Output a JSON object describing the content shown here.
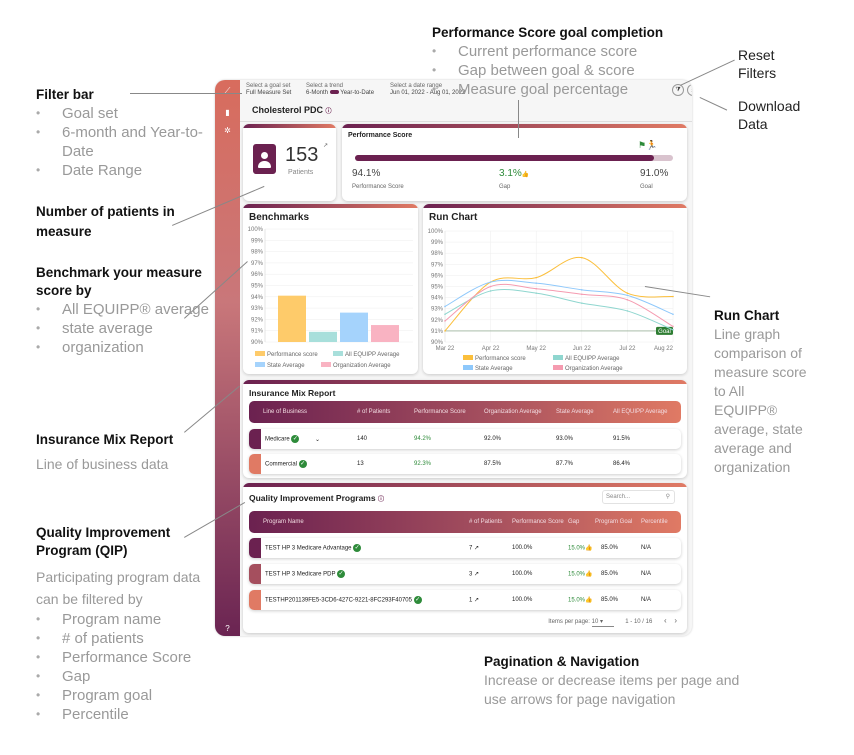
{
  "annotations": {
    "filter_bar": {
      "title": "Filter bar",
      "items": [
        "Goal set",
        "6-month and Year-to-Date",
        "Date Range"
      ]
    },
    "patients": {
      "title": "Number of patients in measure"
    },
    "benchmark": {
      "title": "Benchmark your measure score by",
      "items": [
        "All EQUIPP® average",
        "state average",
        "organization"
      ]
    },
    "insurance": {
      "title": "Insurance Mix Report",
      "desc": "Line of business data"
    },
    "qip": {
      "title": "Quality Improvement Program (QIP)",
      "desc": "Participating program data can be filtered by",
      "items": [
        "Program name",
        "# of patients",
        "Performance Score",
        "Gap",
        "Program goal",
        "Percentile"
      ]
    },
    "perf_goal": {
      "title": "Performance Score goal completion",
      "items": [
        "Current performance score",
        "Gap between goal & score",
        "Measure goal percentage"
      ]
    },
    "reset": {
      "title": "Reset Filters"
    },
    "download": {
      "title": "Download Data"
    },
    "run_chart": {
      "title": "Run Chart",
      "desc": "Line graph comparison of measure score to All EQUIPP® average, state average and organization"
    },
    "pagination": {
      "title": "Pagination & Navigation",
      "desc": "Increase or decrease items per page and use arrows for page navigation"
    }
  },
  "filters": {
    "goal_label": "Select a goal set",
    "goal_value": "Full Measure Set",
    "trend_label": "Select a trend",
    "trend_left": "6-Month",
    "trend_right": "Year-to-Date",
    "date_label": "Select a date range",
    "date_value": "Jun 01, 2022 - Aug 01, 2022"
  },
  "page_title": "Cholesterol PDC",
  "patients": {
    "count": "153",
    "label": "Patients"
  },
  "performance": {
    "title": "Performance Score",
    "score": "94.1%",
    "score_label": "Performance Score",
    "gap": "3.1%",
    "gap_label": "Gap",
    "goal": "91.0%",
    "goal_label": "Goal",
    "progress": 94.1
  },
  "colors": {
    "primary": "#6b2150",
    "accent": "#e07a64",
    "positive": "#2e8b3a"
  },
  "benchmarks": {
    "title": "Benchmarks"
  },
  "run_chart": {
    "title": "Run Chart"
  },
  "chart_data": [
    {
      "type": "bar",
      "title": "Benchmarks",
      "ylim": [
        90,
        100
      ],
      "yticks": [
        "90%",
        "91%",
        "92%",
        "93%",
        "94%",
        "95%",
        "96%",
        "97%",
        "98%",
        "99%",
        "100%"
      ],
      "series": [
        {
          "name": "Performance score",
          "value": 94.1,
          "color": "#fecb6a"
        },
        {
          "name": "All EQUIPP Average",
          "value": 90.9,
          "color": "#a8dfdb"
        },
        {
          "name": "State Average",
          "value": 92.6,
          "color": "#a5d3fc"
        },
        {
          "name": "Organization Average",
          "value": 91.5,
          "color": "#f9b3c2"
        }
      ]
    },
    {
      "type": "line",
      "title": "Run Chart",
      "ylim": [
        90,
        100
      ],
      "yticks": [
        "90%",
        "91%",
        "92%",
        "93%",
        "94%",
        "95%",
        "96%",
        "97%",
        "98%",
        "99%",
        "100%"
      ],
      "x": [
        "Mar 22",
        "Apr 22",
        "May 22",
        "Jun 22",
        "Jul 22",
        "Aug 22"
      ],
      "goal": 91,
      "goal_label": "Goal",
      "series": [
        {
          "name": "Performance score",
          "color": "#fbbf3c",
          "values": [
            91.0,
            95.4,
            95.8,
            97.6,
            94.4,
            94.1
          ]
        },
        {
          "name": "All EQUIPP Average",
          "color": "#8fd6cf",
          "values": [
            92.5,
            94.6,
            94.4,
            93.5,
            92.8,
            91.1
          ]
        },
        {
          "name": "State Average",
          "color": "#8ec8fb",
          "values": [
            93.2,
            95.4,
            95.3,
            94.7,
            94.2,
            92.5
          ]
        },
        {
          "name": "Organization Average",
          "color": "#f59bb0",
          "values": [
            91.9,
            95.0,
            94.8,
            94.3,
            93.8,
            91.4
          ]
        }
      ]
    }
  ],
  "insurance": {
    "title": "Insurance Mix Report",
    "headers": [
      "Line of Business",
      "# of Patients",
      "Performance Score",
      "Organization Average",
      "State Average",
      "All EQUIPP Average"
    ],
    "rows": [
      {
        "name": "Medicare",
        "patients": "140",
        "score": "94.2%",
        "org": "92.0%",
        "state": "93.0%",
        "equipp": "91.5%"
      },
      {
        "name": "Commercial",
        "patients": "13",
        "score": "92.3%",
        "org": "87.5%",
        "state": "87.7%",
        "equipp": "86.4%"
      }
    ]
  },
  "qip": {
    "title": "Quality Improvement Programs",
    "search_placeholder": "Search...",
    "headers": [
      "Program Name",
      "# of Patients",
      "Performance Score",
      "Gap",
      "Program Goal",
      "Percentile"
    ],
    "rows": [
      {
        "name": "TEST HP 3 Medicare Advantage",
        "patients": "7",
        "score": "100.0%",
        "gap": "15.0%",
        "goal": "85.0%",
        "pct": "N/A"
      },
      {
        "name": "TEST HP 3 Medicare PDP",
        "patients": "3",
        "score": "100.0%",
        "gap": "15.0%",
        "goal": "85.0%",
        "pct": "N/A"
      },
      {
        "name": "TESTHP201139FE5-3CD6-427C-9221-8FC293F40705",
        "patients": "1",
        "score": "100.0%",
        "gap": "15.0%",
        "goal": "85.0%",
        "pct": "N/A"
      }
    ],
    "items_per_page_label": "Items per page:",
    "items_per_page": "10",
    "range": "1 - 10 / 16"
  }
}
